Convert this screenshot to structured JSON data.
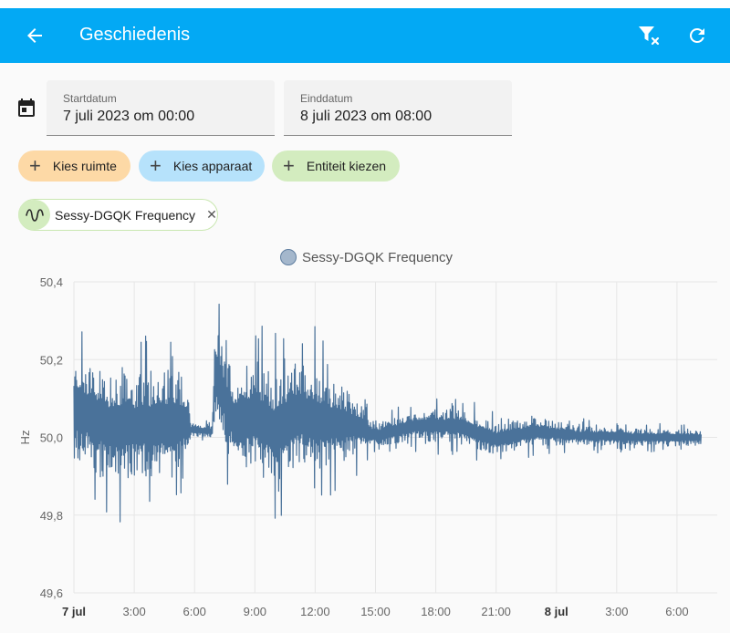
{
  "appbar": {
    "title": "Geschiedenis",
    "back_icon": "arrow-left-icon",
    "filter_icon": "filter-remove-icon",
    "refresh_icon": "refresh-icon",
    "color": "#03a9f4"
  },
  "date_range": {
    "icon": "calendar-icon",
    "start_label": "Startdatum",
    "start_value": "7 juli 2023 om 00:00",
    "end_label": "Einddatum",
    "end_value": "8 juli 2023 om 08:00"
  },
  "target_chips": [
    {
      "label": "Kies ruimte",
      "color": "#fdd9a6"
    },
    {
      "label": "Kies apparaat",
      "color": "#b6e2fb"
    },
    {
      "label": "Entiteit kiezen",
      "color": "#d3ecbf"
    }
  ],
  "selected_entity": {
    "label": "Sessy-DGQK Frequency",
    "icon": "sine-wave-icon"
  },
  "chart_data": {
    "type": "line",
    "legend": "Sessy-DGQK Frequency",
    "legend_position": "top",
    "ylabel": "Hz",
    "ylim": [
      49.6,
      50.4
    ],
    "yticks": [
      "50,4",
      "50,2",
      "50,0",
      "49,8",
      "49,6"
    ],
    "yticks_values": [
      50.4,
      50.2,
      50.0,
      49.8,
      49.6
    ],
    "x_range_hours": [
      0,
      32
    ],
    "xticks": [
      {
        "h": 0,
        "label": "7 jul",
        "bold": true
      },
      {
        "h": 3,
        "label": "3:00"
      },
      {
        "h": 6,
        "label": "6:00"
      },
      {
        "h": 9,
        "label": "9:00"
      },
      {
        "h": 12,
        "label": "12:00"
      },
      {
        "h": 15,
        "label": "15:00"
      },
      {
        "h": 18,
        "label": "18:00"
      },
      {
        "h": 21,
        "label": "21:00"
      },
      {
        "h": 24,
        "label": "8 jul",
        "bold": true
      },
      {
        "h": 27,
        "label": "3:00"
      },
      {
        "h": 30,
        "label": "6:00"
      }
    ],
    "grid": true,
    "series": [
      {
        "name": "Sessy-DGQK Frequency",
        "color": "#4a729a",
        "envelope": [
          {
            "h": 0.0,
            "min": 49.86,
            "max": 50.25
          },
          {
            "h": 0.3,
            "min": 49.82,
            "max": 50.33
          },
          {
            "h": 1.0,
            "min": 49.79,
            "max": 50.3
          },
          {
            "h": 2.0,
            "min": 49.77,
            "max": 50.28
          },
          {
            "h": 3.0,
            "min": 49.79,
            "max": 50.27
          },
          {
            "h": 4.0,
            "min": 49.77,
            "max": 50.29
          },
          {
            "h": 5.0,
            "min": 49.78,
            "max": 50.3
          },
          {
            "h": 5.7,
            "min": 49.85,
            "max": 50.23
          },
          {
            "h": 5.8,
            "min": 49.99,
            "max": 50.05
          },
          {
            "h": 6.9,
            "min": 49.99,
            "max": 50.04
          },
          {
            "h": 7.0,
            "min": 49.95,
            "max": 50.39
          },
          {
            "h": 8.0,
            "min": 49.8,
            "max": 50.27
          },
          {
            "h": 9.0,
            "min": 49.78,
            "max": 50.33
          },
          {
            "h": 10.0,
            "min": 49.77,
            "max": 50.27
          },
          {
            "h": 11.0,
            "min": 49.8,
            "max": 50.32
          },
          {
            "h": 12.0,
            "min": 49.8,
            "max": 50.29
          },
          {
            "h": 13.0,
            "min": 49.84,
            "max": 50.23
          },
          {
            "h": 14.0,
            "min": 49.89,
            "max": 50.17
          },
          {
            "h": 14.5,
            "min": 49.93,
            "max": 50.1
          },
          {
            "h": 15.0,
            "min": 49.95,
            "max": 50.06
          },
          {
            "h": 17.0,
            "min": 49.96,
            "max": 50.1
          },
          {
            "h": 19.0,
            "min": 49.95,
            "max": 50.11
          },
          {
            "h": 21.0,
            "min": 49.92,
            "max": 50.07
          },
          {
            "h": 23.0,
            "min": 49.95,
            "max": 50.08
          },
          {
            "h": 25.0,
            "min": 49.96,
            "max": 50.05
          },
          {
            "h": 28.0,
            "min": 49.96,
            "max": 50.04
          },
          {
            "h": 31.2,
            "min": 49.97,
            "max": 50.03
          }
        ]
      }
    ]
  }
}
